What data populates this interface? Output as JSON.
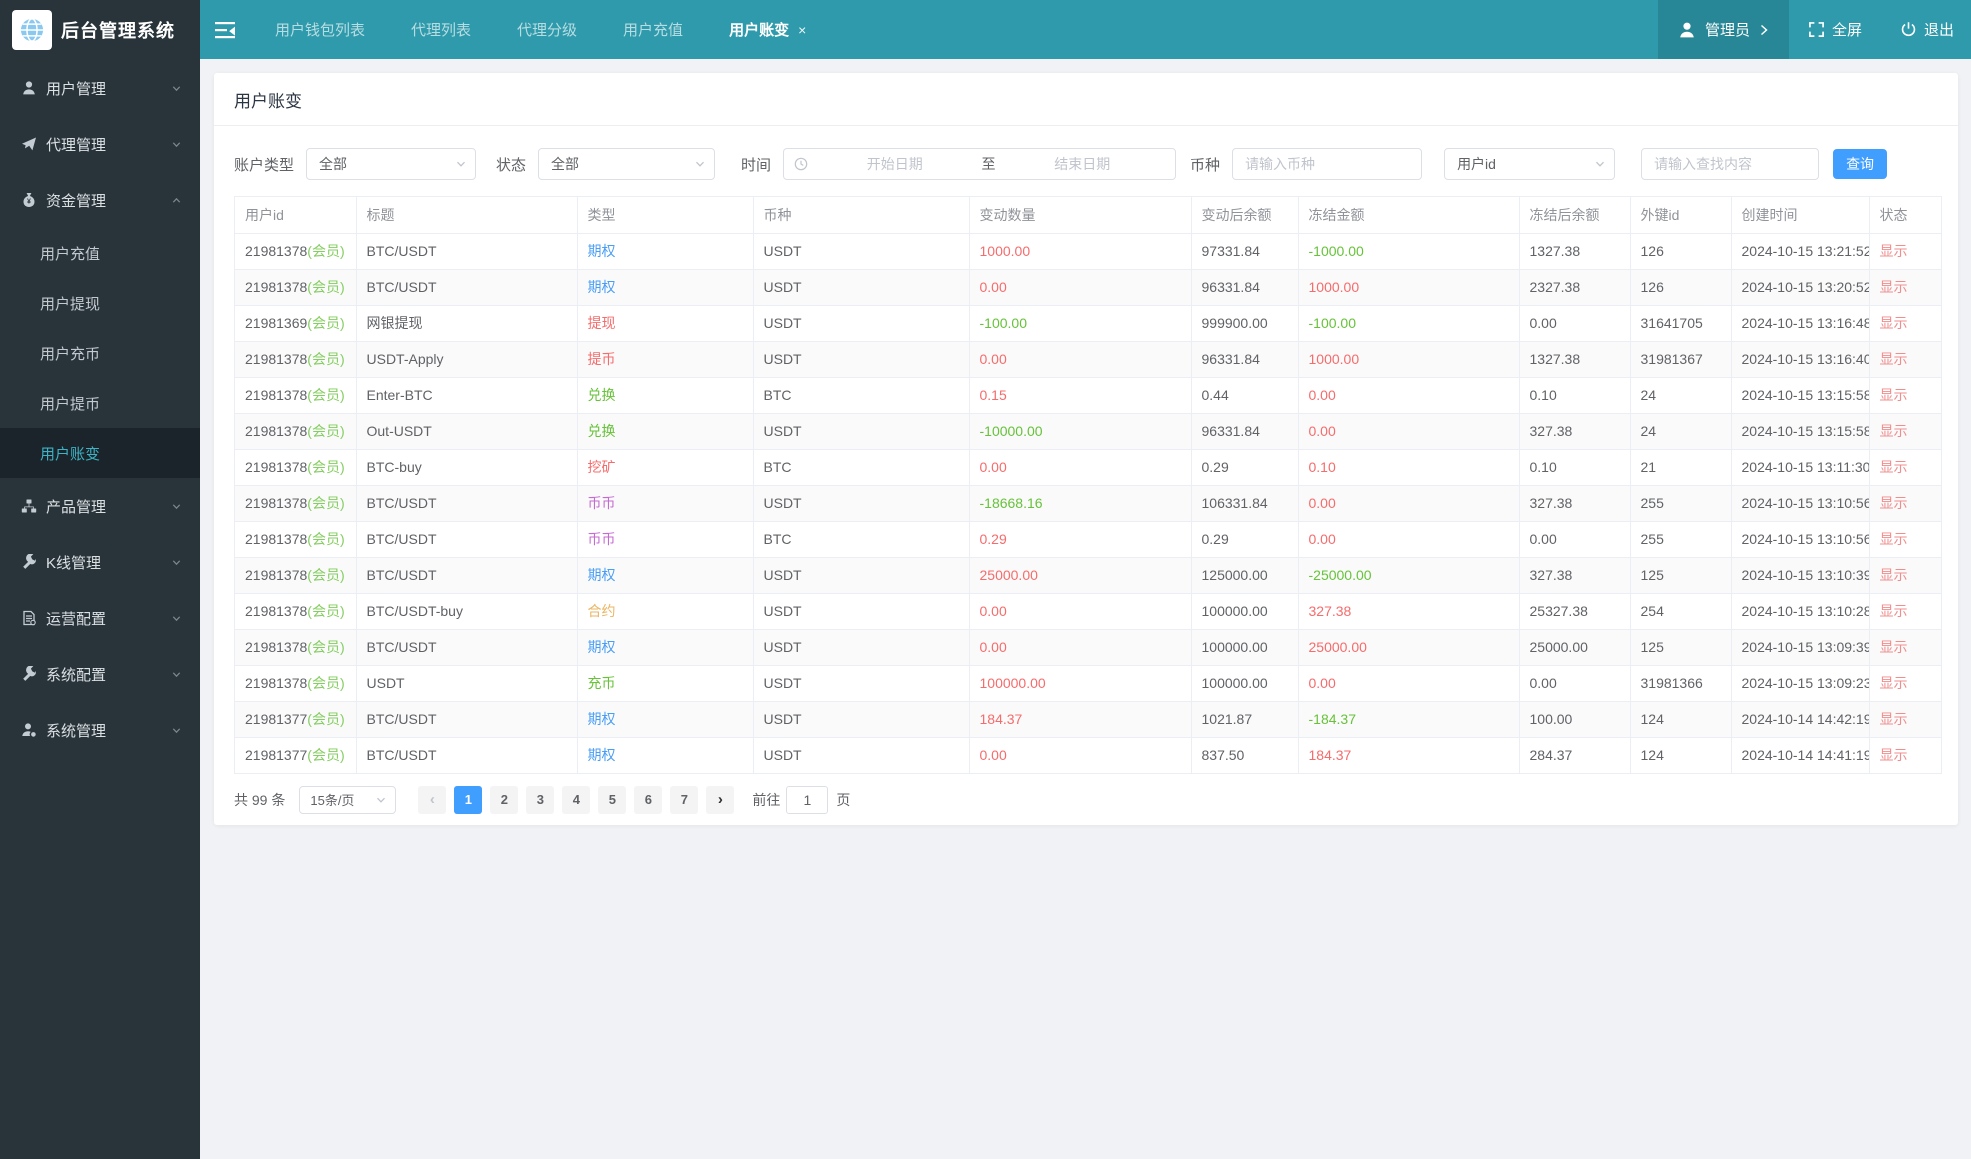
{
  "app": {
    "logo_title": "后台管理系统"
  },
  "topbar": {
    "tabs": [
      {
        "label": "用户钱包列表"
      },
      {
        "label": "代理列表"
      },
      {
        "label": "代理分级"
      },
      {
        "label": "用户充值"
      },
      {
        "label": "用户账变",
        "active": true,
        "close": "×"
      }
    ],
    "admin": {
      "label": "管理员"
    },
    "fullscreen_label": "全屏",
    "logout_label": "退出"
  },
  "sidebar": {
    "groups": [
      {
        "label": "用户管理",
        "icon": "user-icon"
      },
      {
        "label": "代理管理",
        "icon": "paper-plane-icon"
      },
      {
        "label": "资金管理",
        "icon": "money-bag-icon",
        "expanded": true,
        "children": [
          {
            "label": "用户充值"
          },
          {
            "label": "用户提现"
          },
          {
            "label": "用户充币"
          },
          {
            "label": "用户提币"
          },
          {
            "label": "用户账变",
            "active": true
          }
        ]
      },
      {
        "label": "产品管理",
        "icon": "sitemap-icon"
      },
      {
        "label": "K线管理",
        "icon": "wrench-icon"
      },
      {
        "label": "运营配置",
        "icon": "document-gear-icon"
      },
      {
        "label": "系统配置",
        "icon": "wrench-icon"
      },
      {
        "label": "系统管理",
        "icon": "user-gear-icon"
      }
    ]
  },
  "page": {
    "title": "用户账变"
  },
  "filters": {
    "account_type": {
      "label": "账户类型",
      "value": "全部"
    },
    "status": {
      "label": "状态",
      "value": "全部"
    },
    "time": {
      "label": "时间",
      "start_placeholder": "开始日期",
      "separator": "至",
      "end_placeholder": "结束日期"
    },
    "coin": {
      "label": "币种",
      "placeholder": "请输入币种"
    },
    "user_field": {
      "value": "用户id"
    },
    "keyword": {
      "placeholder": "请输入查找内容"
    },
    "search_button": "查询"
  },
  "table": {
    "columns": [
      "用户id",
      "标题",
      "类型",
      "币种",
      "变动数量",
      "变动后余额",
      "冻结金额",
      "冻结后余额",
      "外键id",
      "创建时间",
      "状态"
    ],
    "rows": [
      {
        "user_id": "21981378",
        "user_tag": "(会员)",
        "title": "BTC/USDT",
        "type": "期权",
        "type_color": "blue",
        "coin": "USDT",
        "change": "1000.00",
        "change_color": "red",
        "balance_after": "97331.84",
        "frozen": "-1000.00",
        "frozen_color": "green",
        "frozen_after": "1327.38",
        "fk_id": "126",
        "created_at": "2024-10-15 13:21:52",
        "action": "显示"
      },
      {
        "user_id": "21981378",
        "user_tag": "(会员)",
        "title": "BTC/USDT",
        "type": "期权",
        "type_color": "blue",
        "coin": "USDT",
        "change": "0.00",
        "change_color": "red",
        "balance_after": "96331.84",
        "frozen": "1000.00",
        "frozen_color": "red",
        "frozen_after": "2327.38",
        "fk_id": "126",
        "created_at": "2024-10-15 13:20:52",
        "action": "显示"
      },
      {
        "user_id": "21981369",
        "user_tag": "(会员)",
        "title": "网银提现",
        "type": "提现",
        "type_color": "red",
        "coin": "USDT",
        "change": "-100.00",
        "change_color": "green",
        "balance_after": "999900.00",
        "frozen": "-100.00",
        "frozen_color": "green",
        "frozen_after": "0.00",
        "fk_id": "31641705",
        "created_at": "2024-10-15 13:16:48",
        "action": "显示"
      },
      {
        "user_id": "21981378",
        "user_tag": "(会员)",
        "title": "USDT-Apply",
        "type": "提币",
        "type_color": "red",
        "coin": "USDT",
        "change": "0.00",
        "change_color": "red",
        "balance_after": "96331.84",
        "frozen": "1000.00",
        "frozen_color": "red",
        "frozen_after": "1327.38",
        "fk_id": "31981367",
        "created_at": "2024-10-15 13:16:40",
        "action": "显示"
      },
      {
        "user_id": "21981378",
        "user_tag": "(会员)",
        "title": "Enter-BTC",
        "type": "兑换",
        "type_color": "green",
        "coin": "BTC",
        "change": "0.15",
        "change_color": "red",
        "balance_after": "0.44",
        "frozen": "0.00",
        "frozen_color": "red",
        "frozen_after": "0.10",
        "fk_id": "24",
        "created_at": "2024-10-15 13:15:58",
        "action": "显示"
      },
      {
        "user_id": "21981378",
        "user_tag": "(会员)",
        "title": "Out-USDT",
        "type": "兑换",
        "type_color": "green",
        "coin": "USDT",
        "change": "-10000.00",
        "change_color": "green",
        "balance_after": "96331.84",
        "frozen": "0.00",
        "frozen_color": "red",
        "frozen_after": "327.38",
        "fk_id": "24",
        "created_at": "2024-10-15 13:15:58",
        "action": "显示"
      },
      {
        "user_id": "21981378",
        "user_tag": "(会员)",
        "title": "BTC-buy",
        "type": "挖矿",
        "type_color": "red",
        "coin": "BTC",
        "change": "0.00",
        "change_color": "red",
        "balance_after": "0.29",
        "frozen": "0.10",
        "frozen_color": "red",
        "frozen_after": "0.10",
        "fk_id": "21",
        "created_at": "2024-10-15 13:11:30",
        "action": "显示"
      },
      {
        "user_id": "21981378",
        "user_tag": "(会员)",
        "title": "BTC/USDT",
        "type": "币币",
        "type_color": "purple",
        "coin": "USDT",
        "change": "-18668.16",
        "change_color": "green",
        "balance_after": "106331.84",
        "frozen": "0.00",
        "frozen_color": "red",
        "frozen_after": "327.38",
        "fk_id": "255",
        "created_at": "2024-10-15 13:10:56",
        "action": "显示"
      },
      {
        "user_id": "21981378",
        "user_tag": "(会员)",
        "title": "BTC/USDT",
        "type": "币币",
        "type_color": "purple",
        "coin": "BTC",
        "change": "0.29",
        "change_color": "red",
        "balance_after": "0.29",
        "frozen": "0.00",
        "frozen_color": "red",
        "frozen_after": "0.00",
        "fk_id": "255",
        "created_at": "2024-10-15 13:10:56",
        "action": "显示"
      },
      {
        "user_id": "21981378",
        "user_tag": "(会员)",
        "title": "BTC/USDT",
        "type": "期权",
        "type_color": "blue",
        "coin": "USDT",
        "change": "25000.00",
        "change_color": "red",
        "balance_after": "125000.00",
        "frozen": "-25000.00",
        "frozen_color": "green",
        "frozen_after": "327.38",
        "fk_id": "125",
        "created_at": "2024-10-15 13:10:39",
        "action": "显示"
      },
      {
        "user_id": "21981378",
        "user_tag": "(会员)",
        "title": "BTC/USDT-buy",
        "type": "合约",
        "type_color": "orange",
        "coin": "USDT",
        "change": "0.00",
        "change_color": "red",
        "balance_after": "100000.00",
        "frozen": "327.38",
        "frozen_color": "red",
        "frozen_after": "25327.38",
        "fk_id": "254",
        "created_at": "2024-10-15 13:10:28",
        "action": "显示"
      },
      {
        "user_id": "21981378",
        "user_tag": "(会员)",
        "title": "BTC/USDT",
        "type": "期权",
        "type_color": "blue",
        "coin": "USDT",
        "change": "0.00",
        "change_color": "red",
        "balance_after": "100000.00",
        "frozen": "25000.00",
        "frozen_color": "red",
        "frozen_after": "25000.00",
        "fk_id": "125",
        "created_at": "2024-10-15 13:09:39",
        "action": "显示"
      },
      {
        "user_id": "21981378",
        "user_tag": "(会员)",
        "title": "USDT",
        "type": "充币",
        "type_color": "green",
        "coin": "USDT",
        "change": "100000.00",
        "change_color": "red",
        "balance_after": "100000.00",
        "frozen": "0.00",
        "frozen_color": "red",
        "frozen_after": "0.00",
        "fk_id": "31981366",
        "created_at": "2024-10-15 13:09:23",
        "action": "显示"
      },
      {
        "user_id": "21981377",
        "user_tag": "(会员)",
        "title": "BTC/USDT",
        "type": "期权",
        "type_color": "blue",
        "coin": "USDT",
        "change": "184.37",
        "change_color": "red",
        "balance_after": "1021.87",
        "frozen": "-184.37",
        "frozen_color": "green",
        "frozen_after": "100.00",
        "fk_id": "124",
        "created_at": "2024-10-14 14:42:19",
        "action": "显示"
      },
      {
        "user_id": "21981377",
        "user_tag": "(会员)",
        "title": "BTC/USDT",
        "type": "期权",
        "type_color": "blue",
        "coin": "USDT",
        "change": "0.00",
        "change_color": "red",
        "balance_after": "837.50",
        "frozen": "184.37",
        "frozen_color": "red",
        "frozen_after": "284.37",
        "fk_id": "124",
        "created_at": "2024-10-14 14:41:19",
        "action": "显示"
      }
    ]
  },
  "pagination": {
    "total_text": "共 99 条",
    "page_size": "15条/页",
    "prev_glyph": "‹",
    "next_glyph": "›",
    "pages": [
      "1",
      "2",
      "3",
      "4",
      "5",
      "6",
      "7"
    ],
    "active_page": "1",
    "goto_label": "前往",
    "goto_value": "1",
    "goto_suffix": "页"
  },
  "colors": {
    "topbar_teal": "#2e9aab",
    "sidebar_dark": "#28333a",
    "accent_blue": "#409eff",
    "danger_red": "#f56c6c",
    "success_green": "#67c23a",
    "warning_orange": "#ebb563",
    "type_purple": "#c46ad2"
  }
}
